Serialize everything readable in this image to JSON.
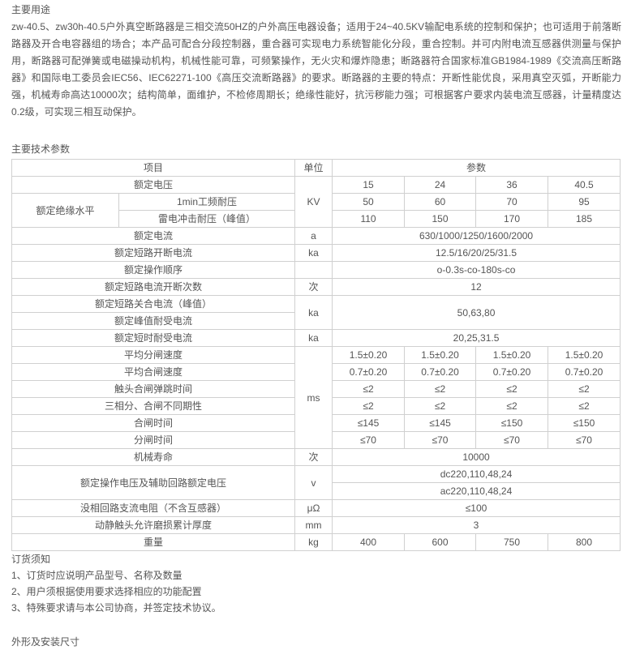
{
  "usage": {
    "heading": "主要用途",
    "text": "zw-40.5、zw30h-40.5户外真空断路器是三相交流50HZ的户外高压电器设备；适用于24~40.5KV输配电系统的控制和保护；也可适用于前落断路器及开合电容器组的场合；本产品可配合分段控制器，重合器可实现电力系统智能化分段，重合控制。并可内附电流互感器供测量与保护用，断路器可配弹簧或电磁操动机构，机械性能可靠，可频繁操作，无火灾和爆炸隐患；断路器符合国家标准GB1984-1989《交流高压断路器》和国际电工委员会IEC56、IEC62271-100《高压交流断路器》的要求。断路器的主要的特点：开断性能优良，采用真空灭弧，开断能力强，机械寿命高达10000次；结构简单，面维护，不检修周期长；绝缘性能好，抗污秽能力强；可根据客户要求内装电流互感器，计量精度达0.2级，可实现三相互动保护。"
  },
  "specs": {
    "heading": "主要技术参数",
    "rows": [
      [
        {
          "t": "项目",
          "cs": 2
        },
        {
          "t": "单位"
        },
        {
          "t": "参数",
          "cs": 4
        }
      ],
      [
        {
          "t": "额定电压",
          "cs": 2
        },
        {
          "t": "KV",
          "rs": 3
        },
        {
          "t": "15"
        },
        {
          "t": "24"
        },
        {
          "t": "36"
        },
        {
          "t": "40.5"
        }
      ],
      [
        {
          "t": "额定绝缘水平",
          "rs": 2
        },
        {
          "t": "1min工频耐压"
        },
        {
          "t": "50"
        },
        {
          "t": "60"
        },
        {
          "t": "70"
        },
        {
          "t": "95"
        }
      ],
      [
        {
          "t": "雷电冲击耐压（峰值）"
        },
        {
          "t": "110"
        },
        {
          "t": "150"
        },
        {
          "t": "170"
        },
        {
          "t": "185"
        }
      ],
      [
        {
          "t": "额定电流",
          "cs": 2
        },
        {
          "t": "a"
        },
        {
          "t": "630/1000/1250/1600/2000",
          "cs": 4
        }
      ],
      [
        {
          "t": "额定短路开断电流",
          "cs": 2
        },
        {
          "t": "ka"
        },
        {
          "t": "12.5/16/20/25/31.5",
          "cs": 4
        }
      ],
      [
        {
          "t": "额定操作顺序",
          "cs": 2
        },
        {
          "t": ""
        },
        {
          "t": "o-0.3s-co-180s-co",
          "cs": 4
        }
      ],
      [
        {
          "t": "额定短路电流开断次数",
          "cs": 2
        },
        {
          "t": "次"
        },
        {
          "t": "12",
          "cs": 4
        }
      ],
      [
        {
          "t": "额定短路关合电流（峰值）",
          "cs": 2
        },
        {
          "t": "ka",
          "rs": 2
        },
        {
          "t": "50,63,80",
          "cs": 4,
          "rs": 2
        }
      ],
      [
        {
          "t": "额定峰值耐受电流",
          "cs": 2
        }
      ],
      [
        {
          "t": "额定短时耐受电流",
          "cs": 2
        },
        {
          "t": "ka"
        },
        {
          "t": "20,25,31.5",
          "cs": 4
        }
      ],
      [
        {
          "t": "平均分闸速度",
          "cs": 2
        },
        {
          "t": "ms",
          "rs": 6
        },
        {
          "t": "1.5±0.20"
        },
        {
          "t": "1.5±0.20"
        },
        {
          "t": "1.5±0.20"
        },
        {
          "t": "1.5±0.20"
        }
      ],
      [
        {
          "t": "平均合闸速度",
          "cs": 2
        },
        {
          "t": "0.7±0.20"
        },
        {
          "t": "0.7±0.20"
        },
        {
          "t": "0.7±0.20"
        },
        {
          "t": "0.7±0.20"
        }
      ],
      [
        {
          "t": "触头合闸弹跳时间",
          "cs": 2
        },
        {
          "t": "≤2"
        },
        {
          "t": "≤2"
        },
        {
          "t": "≤2"
        },
        {
          "t": "≤2"
        }
      ],
      [
        {
          "t": "三相分、合闸不同期性",
          "cs": 2
        },
        {
          "t": "≤2"
        },
        {
          "t": "≤2"
        },
        {
          "t": "≤2"
        },
        {
          "t": "≤2"
        }
      ],
      [
        {
          "t": "合闸时间",
          "cs": 2
        },
        {
          "t": "≤145"
        },
        {
          "t": "≤145"
        },
        {
          "t": "≤150"
        },
        {
          "t": "≤150"
        }
      ],
      [
        {
          "t": "分闸时间",
          "cs": 2
        },
        {
          "t": "≤70"
        },
        {
          "t": "≤70"
        },
        {
          "t": "≤70"
        },
        {
          "t": "≤70"
        }
      ],
      [
        {
          "t": "机械寿命",
          "cs": 2
        },
        {
          "t": "次"
        },
        {
          "t": "10000",
          "cs": 4
        }
      ],
      [
        {
          "t": "额定操作电压及辅助回路额定电压",
          "cs": 2,
          "rs": 2
        },
        {
          "t": "v",
          "rs": 2
        },
        {
          "t": "dc220,110,48,24",
          "cs": 4
        }
      ],
      [
        {
          "t": "ac220,110,48,24",
          "cs": 4
        }
      ],
      [
        {
          "t": "没相回路支流电阻（不含互感器）",
          "cs": 2
        },
        {
          "t": "μΩ"
        },
        {
          "t": "≤100",
          "cs": 4
        }
      ],
      [
        {
          "t": "动静触头允许磨损累计厚度",
          "cs": 2
        },
        {
          "t": "mm"
        },
        {
          "t": "3",
          "cs": 4
        }
      ],
      [
        {
          "t": "重量",
          "cs": 2
        },
        {
          "t": "kg"
        },
        {
          "t": "400"
        },
        {
          "t": "600"
        },
        {
          "t": "750"
        },
        {
          "t": "800"
        }
      ]
    ]
  },
  "ordering": {
    "heading": "订货须知",
    "items": [
      "1、订货时应说明产品型号、名称及数量",
      "2、用户须根据使用要求选择相应的功能配置",
      "3、特殊要求请与本公司协商，并签定技术协议。"
    ]
  },
  "dimensions": {
    "heading": "外形及安装尺寸"
  }
}
